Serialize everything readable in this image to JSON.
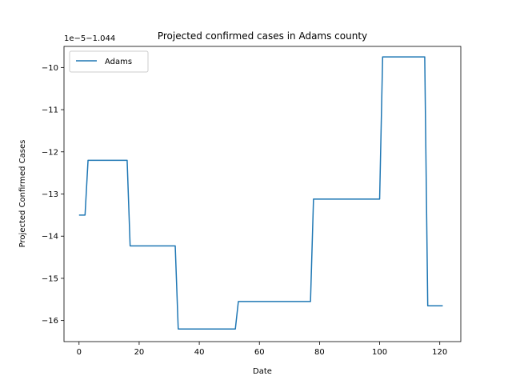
{
  "chart_data": {
    "type": "line",
    "title": "Projected confirmed cases in Adams county",
    "xlabel": "Date",
    "ylabel": "Projected Confirmed Cases",
    "y_offset_label": "1e−5−1.044",
    "xlim": [
      -5,
      127
    ],
    "ylim": [
      -16.5,
      -9.5
    ],
    "x_ticks": [
      0,
      20,
      40,
      60,
      80,
      100,
      120
    ],
    "y_ticks": [
      -16,
      -15,
      -14,
      -13,
      -12,
      -11,
      -10
    ],
    "x_tick_labels": [
      "0",
      "20",
      "40",
      "60",
      "80",
      "100",
      "120"
    ],
    "y_tick_labels": [
      "−16",
      "−15",
      "−14",
      "−13",
      "−12",
      "−11",
      "−10"
    ],
    "grid": false,
    "legend_position": "upper-left",
    "series": [
      {
        "name": "Adams",
        "color": "#1f77b4",
        "x": [
          0,
          2,
          3,
          16,
          17,
          32,
          33,
          52,
          53,
          77,
          78,
          100,
          101,
          115,
          116,
          121
        ],
        "y": [
          -13.5,
          -13.5,
          -12.2,
          -12.2,
          -14.23,
          -14.23,
          -16.2,
          -16.2,
          -15.55,
          -15.55,
          -13.12,
          -13.12,
          -9.75,
          -9.75,
          -15.65,
          -15.65
        ]
      }
    ]
  }
}
